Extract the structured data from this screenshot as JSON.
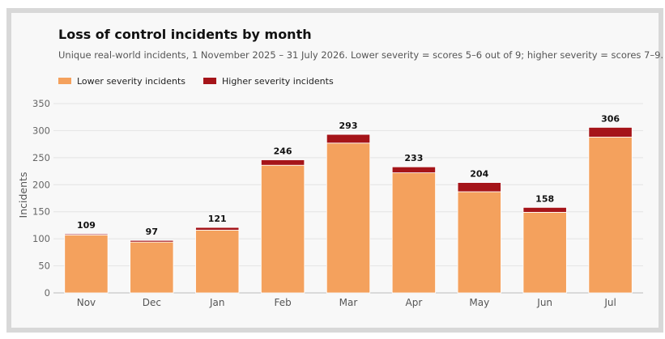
{
  "chart_data": {
    "type": "bar",
    "stacked": true,
    "title": "Loss of control incidents by month",
    "subtitle": "Unique real-world incidents, 1 November 2025 – 31 July 2026. Lower severity = scores 5–6 out of 9; higher severity = scores 7–9.",
    "xlabel": "",
    "ylabel": "Incidents",
    "ylim": [
      0,
      350
    ],
    "yticks": [
      0,
      50,
      100,
      150,
      200,
      250,
      300,
      350
    ],
    "grid": true,
    "legend_position": "top-left",
    "categories": [
      "Nov",
      "Dec",
      "Jan",
      "Feb",
      "Mar",
      "Apr",
      "May",
      "Jun",
      "Jul"
    ],
    "series": [
      {
        "name": "Lower severity incidents",
        "color": "#f4a15d",
        "values": [
          107,
          94,
          116,
          236,
          277,
          222,
          187,
          149,
          288
        ]
      },
      {
        "name": "Higher severity incidents",
        "color": "#a51419",
        "values": [
          2,
          3,
          5,
          10,
          16,
          11,
          17,
          9,
          18
        ]
      }
    ],
    "totals": [
      109,
      97,
      121,
      246,
      293,
      233,
      204,
      158,
      306
    ]
  }
}
